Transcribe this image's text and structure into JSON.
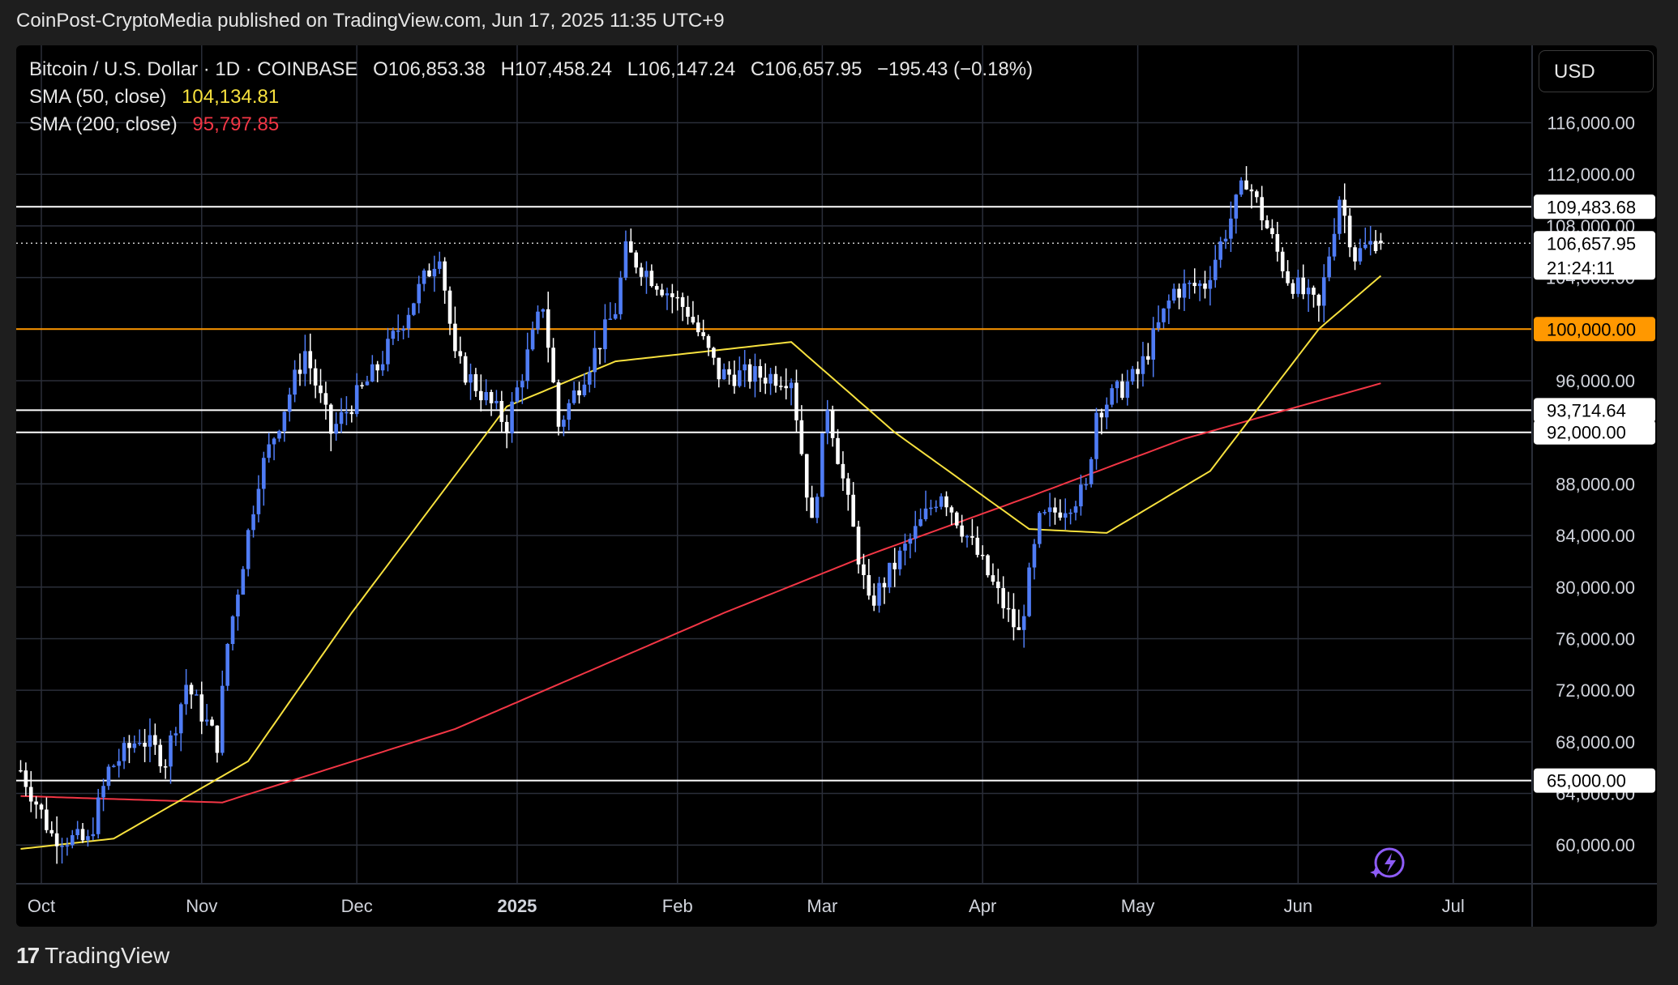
{
  "publisher_line": "CoinPost-CryptoMedia published on TradingView.com, Jun 17, 2025 11:35 UTC+9",
  "footer": {
    "logo_mark": "17",
    "logo_text": "TradingView"
  },
  "currency_button": "USD",
  "legend": {
    "symbol": "Bitcoin / U.S. Dollar · 1D · COINBASE",
    "open": "O106,853.38",
    "high": "H107,458.24",
    "low": "L106,147.24",
    "close": "C106,657.95",
    "change": "−195.43 (−0.18%)",
    "sma50_label": "SMA (50, close)",
    "sma50_value": "104,134.81",
    "sma200_label": "SMA (200, close)",
    "sma200_value": "95,797.85"
  },
  "colors": {
    "background": "#000000",
    "grid": "#2a2e39",
    "candle_up": "#4f7cf5",
    "candle_down": "#ffffff",
    "sma50": "#f7e13e",
    "sma200": "#f23645",
    "resistance_100k": "#ff9800",
    "text": "#d1d4dc"
  },
  "icons": {
    "assistant": "lightning-sparkle-icon"
  },
  "chart_data": {
    "type": "candlestick",
    "title": "Bitcoin / U.S. Dollar · 1D · COINBASE",
    "ylim": [
      57000,
      122000
    ],
    "y_ticks": [
      "116,000.00",
      "112,000.00",
      "108,000.00",
      "104,000.00",
      "100,000.00",
      "96,000.00",
      "92,000.00",
      "88,000.00",
      "84,000.00",
      "80,000.00",
      "76,000.00",
      "72,000.00",
      "68,000.00",
      "64,000.00",
      "60,000.00"
    ],
    "y_tick_values": [
      116000,
      112000,
      108000,
      104000,
      100000,
      96000,
      92000,
      88000,
      84000,
      80000,
      76000,
      72000,
      68000,
      64000,
      60000
    ],
    "x_ticks": [
      "Oct",
      "Nov",
      "Dec",
      "2025",
      "Feb",
      "Mar",
      "Apr",
      "May",
      "Jun",
      "Jul"
    ],
    "x_tick_days": [
      0,
      31,
      61,
      92,
      123,
      151,
      182,
      212,
      243,
      273
    ],
    "bold_x_tick": "2025",
    "horizontal_levels": [
      {
        "value": 109483.68,
        "label": "109,483.68",
        "color": "#ffffff"
      },
      {
        "value": 100000,
        "label": "100,000.00",
        "color": "#ff9800"
      },
      {
        "value": 93714.64,
        "label": "93,714.64",
        "color": "#ffffff"
      },
      {
        "value": 92000,
        "label": "92,000.00",
        "color": "#ffffff"
      },
      {
        "value": 65000,
        "label": "65,000.00",
        "color": "#ffffff"
      }
    ],
    "last_price": {
      "value": 106657.95,
      "label": "106,657.95",
      "countdown": "21:24:11"
    },
    "ohlc_last": {
      "open": 106853.38,
      "high": 107458.24,
      "low": 106147.24,
      "close": 106657.95
    },
    "price_keypoints": [
      {
        "date": "2024-09-27",
        "close": 65800
      },
      {
        "date": "2024-10-03",
        "close": 60800
      },
      {
        "date": "2024-10-10",
        "close": 60200
      },
      {
        "date": "2024-10-14",
        "close": 65800
      },
      {
        "date": "2024-10-20",
        "close": 68400
      },
      {
        "date": "2024-10-25",
        "close": 66600
      },
      {
        "date": "2024-10-29",
        "close": 72500
      },
      {
        "date": "2024-11-04",
        "close": 67900
      },
      {
        "date": "2024-11-06",
        "close": 75600
      },
      {
        "date": "2024-11-12",
        "close": 88500
      },
      {
        "date": "2024-11-21",
        "close": 98300
      },
      {
        "date": "2024-11-26",
        "close": 92000
      },
      {
        "date": "2024-12-05",
        "close": 97000
      },
      {
        "date": "2024-12-17",
        "close": 106100
      },
      {
        "date": "2024-12-20",
        "close": 97600
      },
      {
        "date": "2024-12-30",
        "close": 92600
      },
      {
        "date": "2025-01-06",
        "close": 102000
      },
      {
        "date": "2025-01-09",
        "close": 92500
      },
      {
        "date": "2025-01-20",
        "close": 101500
      },
      {
        "date": "2025-01-22",
        "close": 106000
      },
      {
        "date": "2025-02-03",
        "close": 101400
      },
      {
        "date": "2025-02-09",
        "close": 96500
      },
      {
        "date": "2025-02-23",
        "close": 96300
      },
      {
        "date": "2025-02-27",
        "close": 84700
      },
      {
        "date": "2025-03-02",
        "close": 94200
      },
      {
        "date": "2025-03-10",
        "close": 78500
      },
      {
        "date": "2025-03-24",
        "close": 87500
      },
      {
        "date": "2025-03-31",
        "close": 82500
      },
      {
        "date": "2025-04-08",
        "close": 76300
      },
      {
        "date": "2025-04-12",
        "close": 85000
      },
      {
        "date": "2025-04-21",
        "close": 87500
      },
      {
        "date": "2025-04-23",
        "close": 93700
      },
      {
        "date": "2025-05-01",
        "close": 96500
      },
      {
        "date": "2025-05-08",
        "close": 103000
      },
      {
        "date": "2025-05-14",
        "close": 103500
      },
      {
        "date": "2025-05-22",
        "close": 111700
      },
      {
        "date": "2025-05-30",
        "close": 104000
      },
      {
        "date": "2025-06-05",
        "close": 101500
      },
      {
        "date": "2025-06-09",
        "close": 110300
      },
      {
        "date": "2025-06-12",
        "close": 105700
      },
      {
        "date": "2025-06-16",
        "close": 106900
      },
      {
        "date": "2025-06-17",
        "close": 106657.95
      }
    ],
    "series": [
      {
        "name": "SMA (50, close)",
        "last": 104134.81
      },
      {
        "name": "SMA (200, close)",
        "last": 95797.85
      }
    ],
    "sma50_keypoints": [
      {
        "date": "2024-09-27",
        "value": 59700
      },
      {
        "date": "2024-10-15",
        "value": 60500
      },
      {
        "date": "2024-11-10",
        "value": 66500
      },
      {
        "date": "2024-11-30",
        "value": 78000
      },
      {
        "date": "2024-12-30",
        "value": 94000
      },
      {
        "date": "2025-01-20",
        "value": 97500
      },
      {
        "date": "2025-02-23",
        "value": 99000
      },
      {
        "date": "2025-03-15",
        "value": 92000
      },
      {
        "date": "2025-04-10",
        "value": 84500
      },
      {
        "date": "2025-04-25",
        "value": 84200
      },
      {
        "date": "2025-05-15",
        "value": 89000
      },
      {
        "date": "2025-06-05",
        "value": 100000
      },
      {
        "date": "2025-06-17",
        "value": 104134.81
      }
    ],
    "sma200_keypoints": [
      {
        "date": "2024-09-27",
        "value": 63800
      },
      {
        "date": "2024-11-05",
        "value": 63300
      },
      {
        "date": "2024-12-20",
        "value": 69000
      },
      {
        "date": "2025-02-10",
        "value": 78000
      },
      {
        "date": "2025-03-10",
        "value": 82500
      },
      {
        "date": "2025-04-10",
        "value": 87000
      },
      {
        "date": "2025-05-10",
        "value": 91500
      },
      {
        "date": "2025-06-17",
        "value": 95797.85
      }
    ],
    "grid": true,
    "legend_position": "top-left"
  }
}
